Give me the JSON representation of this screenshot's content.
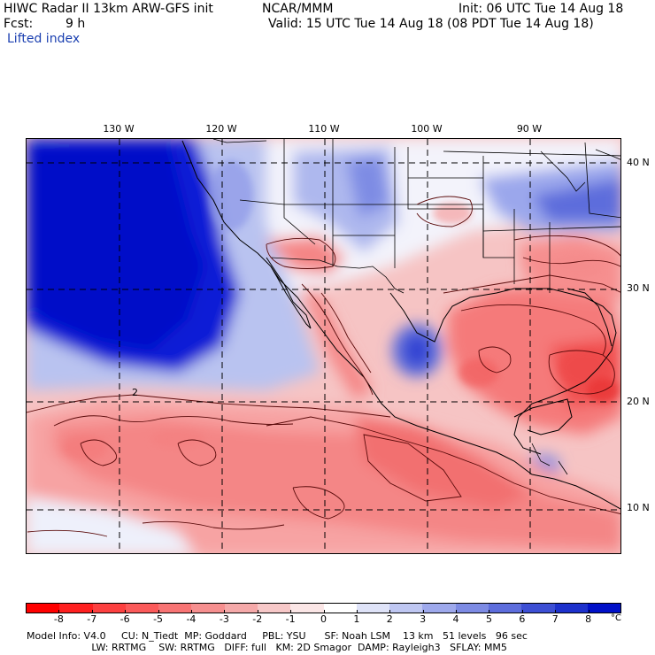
{
  "header": {
    "model": "HIWC Radar II 13km ARW-GFS init",
    "org": "NCAR/MMM",
    "init": "Init: 06 UTC Tue 14 Aug 18",
    "fcst_label": "Fcst:",
    "fcst_value": "9 h",
    "valid": "Valid: 15 UTC Tue 14 Aug 18 (08 PDT Tue 14 Aug 18)",
    "field": "Lifted index"
  },
  "map": {
    "lon_labels": [
      "130 W",
      "120 W",
      "110 W",
      "100 W",
      "90 W"
    ],
    "lat_labels": [
      "40 N",
      "30 N",
      "20 N",
      "10 N"
    ],
    "contour_label": "2"
  },
  "colorbar": {
    "unit": "°C",
    "levels": [
      "-8",
      "-7",
      "-6",
      "-5",
      "-4",
      "-3",
      "-2",
      "-1",
      "0",
      "1",
      "2",
      "3",
      "4",
      "5",
      "6",
      "7",
      "8"
    ],
    "colors": [
      "#ff0000",
      "#ff2020",
      "#fd4040",
      "#fb5a5a",
      "#f87474",
      "#f68f8f",
      "#f5a9a9",
      "#f7c8c8",
      "#fbe6e6",
      "#ffffff",
      "#dfe3f8",
      "#bfc7f2",
      "#9ea9ec",
      "#7d8be4",
      "#5d6ddc",
      "#3d4fd4",
      "#1d31cc",
      "#0010c8"
    ]
  },
  "footer": {
    "line1": "Model Info: V4.0     CU: N_Tiedt  MP: Goddard     PBL: YSU      SF: Noah LSM    13 km   51 levels   96 sec",
    "line2": "                     LW: RRTMG    SW: RRTMG   DIFF: full   KM: 2D Smagor  DAMP: Rayleigh3   SFLAY: MM5"
  }
}
